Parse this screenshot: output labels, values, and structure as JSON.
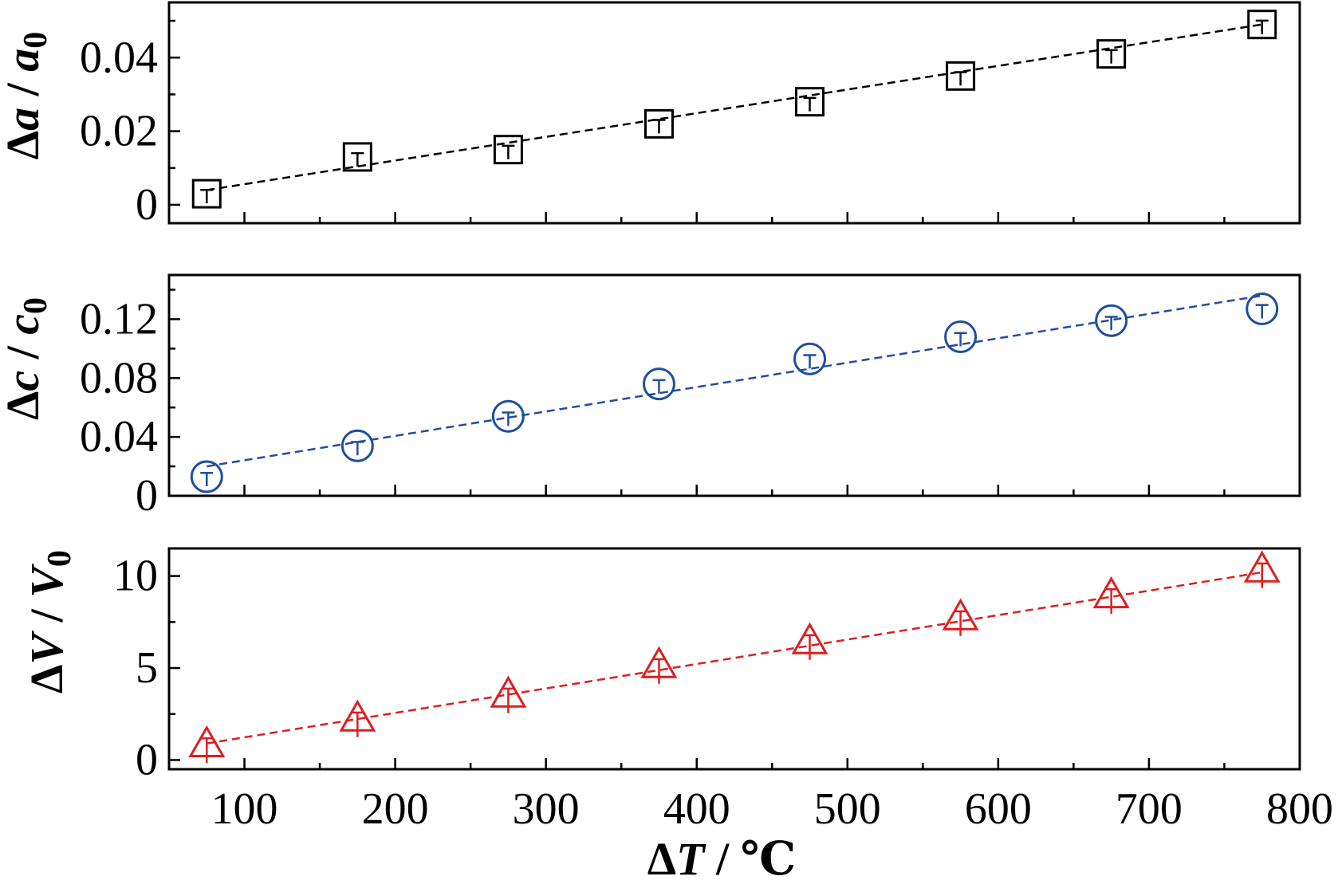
{
  "chart_data": [
    {
      "type": "scatter",
      "color": "#000000",
      "marker": "square",
      "ylabel_parts": [
        "Δ",
        "a",
        " / ",
        "a",
        "0"
      ],
      "ylim": [
        -0.005,
        0.055
      ],
      "yticks": [
        0,
        0.02,
        0.04
      ],
      "ytick_labels": [
        "0",
        "0.02",
        "0.04"
      ],
      "xlim": [
        50,
        800
      ],
      "x": [
        75,
        175,
        275,
        375,
        475,
        575,
        675,
        775
      ],
      "y": [
        0.003,
        0.013,
        0.015,
        0.022,
        0.028,
        0.035,
        0.041,
        0.049
      ],
      "fit": {
        "style": "dashed",
        "x": [
          75,
          775
        ],
        "y": [
          0.004,
          0.049
        ]
      }
    },
    {
      "type": "scatter",
      "color": "#1f4e9e",
      "marker": "circle",
      "ylabel_parts": [
        "Δ",
        "c",
        " / ",
        "c",
        "0"
      ],
      "ylim": [
        0,
        0.15
      ],
      "yticks": [
        0,
        0.04,
        0.08,
        0.12
      ],
      "ytick_labels": [
        "0",
        "0.04",
        "0.08",
        "0.12"
      ],
      "xlim": [
        50,
        800
      ],
      "x": [
        75,
        175,
        275,
        375,
        475,
        575,
        675,
        775
      ],
      "y": [
        0.013,
        0.034,
        0.054,
        0.076,
        0.093,
        0.108,
        0.119,
        0.127
      ],
      "fit": {
        "style": "dashed",
        "x": [
          75,
          775
        ],
        "y": [
          0.02,
          0.136
        ]
      }
    },
    {
      "type": "scatter",
      "color": "#dd1f1f",
      "marker": "triangle",
      "ylabel_parts": [
        "Δ",
        "V",
        " / ",
        "V",
        "0"
      ],
      "ylim": [
        -0.5,
        11.5
      ],
      "yticks": [
        0,
        5,
        10
      ],
      "ytick_labels": [
        "0",
        "5",
        "10"
      ],
      "xlim": [
        50,
        800
      ],
      "x": [
        75,
        175,
        275,
        375,
        475,
        575,
        675,
        775
      ],
      "y": [
        0.8,
        2.2,
        3.5,
        5.1,
        6.4,
        7.7,
        8.9,
        10.3
      ],
      "fit": {
        "style": "dashed",
        "x": [
          75,
          775
        ],
        "y": [
          0.9,
          10.2
        ]
      },
      "xticks": [
        100,
        200,
        300,
        400,
        500,
        600,
        700,
        800
      ],
      "xtick_labels": [
        "100",
        "200",
        "300",
        "400",
        "500",
        "600",
        "700",
        "800"
      ],
      "xlabel_parts": [
        "Δ",
        "T",
        " / ℃"
      ]
    }
  ]
}
